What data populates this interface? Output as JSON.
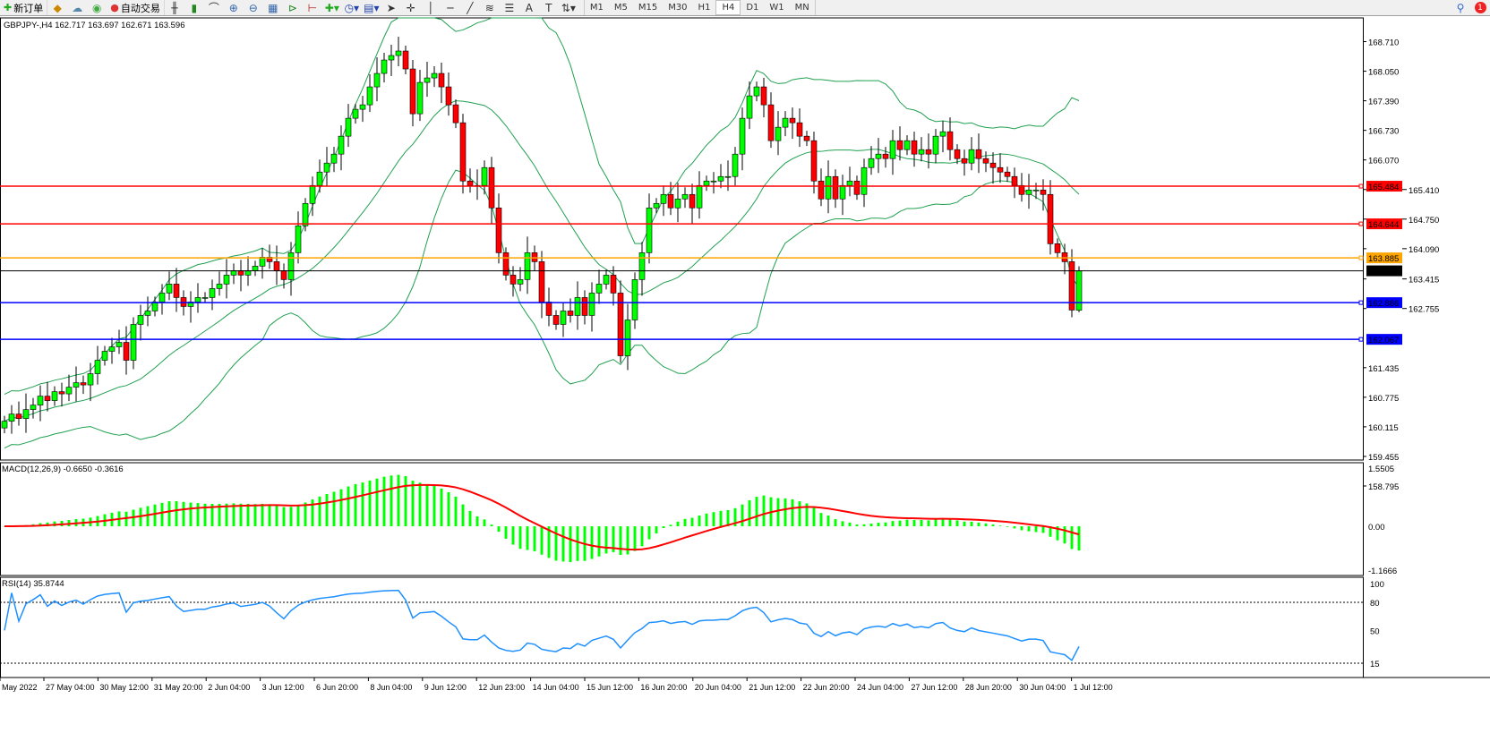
{
  "toolbar": {
    "new_order": "新订单",
    "auto_trading": "自动交易",
    "icons": [
      "new-order-icon",
      "market-watch-icon",
      "navigator-icon",
      "signal-icon",
      "auto-trading-icon",
      "bar-chart-icon",
      "candlestick-icon",
      "line-chart-icon",
      "zoom-in-icon",
      "zoom-out-icon",
      "tile-windows-icon",
      "chart-shift-icon",
      "autoscroll-icon",
      "indicators-icon",
      "periods-icon",
      "templates-icon",
      "cursor-icon",
      "crosshair-icon",
      "vertical-line-icon",
      "horizontal-line-icon",
      "trendline-icon",
      "fibonacci-icon",
      "channel-icon",
      "text-icon",
      "label-icon",
      "arrows-icon"
    ],
    "timeframes": [
      "M1",
      "M5",
      "M15",
      "M30",
      "H1",
      "H4",
      "D1",
      "W1",
      "MN"
    ],
    "active_timeframe": "H4",
    "notification_count": "1"
  },
  "chart": {
    "header": "GBPJPY-,H4  162.717 163.697 162.671 163.596",
    "symbol": "GBPJPY-",
    "period": "H4",
    "ohlc": {
      "open": 162.717,
      "high": 163.697,
      "low": 162.671,
      "close": 163.596
    },
    "price_axis": [
      "168.710",
      "168.050",
      "167.390",
      "166.730",
      "166.070",
      "165.410",
      "164.750",
      "164.090",
      "163.415",
      "162.755",
      "161.435",
      "160.775",
      "160.115",
      "159.455",
      "158.795"
    ],
    "price_range": [
      158.795,
      169.1
    ],
    "levels": [
      {
        "price": "165.484",
        "color": "#ff0000"
      },
      {
        "price": "164.644",
        "color": "#ff0000"
      },
      {
        "price": "163.885",
        "color": "#ffa500"
      },
      {
        "price": "162.886",
        "color": "#0000ff"
      },
      {
        "price": "162.067",
        "color": "#0000ff"
      }
    ],
    "bid": {
      "price": "163.596",
      "color": "#000000"
    },
    "bull_color": "#00ff00",
    "bear_color": "#ff0000",
    "band_color": "#20a050",
    "indicator": "Bollinger Bands",
    "closes": [
      160.24,
      160.4,
      160.3,
      160.5,
      160.6,
      160.8,
      160.7,
      160.9,
      160.85,
      161.0,
      161.1,
      161.05,
      161.3,
      161.6,
      161.8,
      161.9,
      162.0,
      161.6,
      162.4,
      162.6,
      162.7,
      162.9,
      163.1,
      163.3,
      163.0,
      162.8,
      162.9,
      163.0,
      163.0,
      163.2,
      163.3,
      163.5,
      163.6,
      163.5,
      163.6,
      163.7,
      163.9,
      163.8,
      163.6,
      163.4,
      164.0,
      164.6,
      165.1,
      165.5,
      165.8,
      166.0,
      166.2,
      166.6,
      167.0,
      167.2,
      167.3,
      167.7,
      168.0,
      168.3,
      168.4,
      168.5,
      168.1,
      167.1,
      167.8,
      167.9,
      168.0,
      167.7,
      167.3,
      166.9,
      165.6,
      165.5,
      165.5,
      165.9,
      165.0,
      164.0,
      163.5,
      163.3,
      163.4,
      164.0,
      163.8,
      162.9,
      162.6,
      162.4,
      162.7,
      162.6,
      163.0,
      162.6,
      163.1,
      163.3,
      163.5,
      163.1,
      161.7,
      162.5,
      163.4,
      164.0,
      165.0,
      165.1,
      165.3,
      165.0,
      165.2,
      165.3,
      165.0,
      165.5,
      165.6,
      165.6,
      165.7,
      165.7,
      166.2,
      167.0,
      167.5,
      167.7,
      167.3,
      166.5,
      166.8,
      167.0,
      166.9,
      166.6,
      166.5,
      165.6,
      165.2,
      165.7,
      165.2,
      165.5,
      165.6,
      165.3,
      165.9,
      166.1,
      166.2,
      166.1,
      166.5,
      166.3,
      166.5,
      166.2,
      166.3,
      166.2,
      166.6,
      166.7,
      166.3,
      166.1,
      166.0,
      166.3,
      166.1,
      166.0,
      165.9,
      165.8,
      165.7,
      165.5,
      165.3,
      165.4,
      165.4,
      165.3,
      164.2,
      164.0,
      163.8,
      162.72,
      163.596
    ]
  },
  "macd": {
    "label": "MACD(12,26,9) -0.6650 -0.3616",
    "axis": [
      "1.5505",
      "0.00",
      "-1.1666"
    ],
    "range": [
      -1.1666,
      1.5505
    ],
    "hist_color": "#00ff00",
    "signal_color": "#ff0000"
  },
  "rsi": {
    "label": "RSI(14) 35.8744",
    "axis": [
      "100",
      "80",
      "50",
      "15"
    ],
    "levels": [
      80,
      15
    ],
    "color": "#1e90ff"
  },
  "time_axis": [
    "May 2022",
    "27 May 04:00",
    "30 May 12:00",
    "31 May 20:00",
    "2 Jun 04:00",
    "3 Jun 12:00",
    "6 Jun 20:00",
    "8 Jun 04:00",
    "9 Jun 12:00",
    "12 Jun 23:00",
    "14 Jun 04:00",
    "15 Jun 12:00",
    "16 Jun 20:00",
    "20 Jun 04:00",
    "21 Jun 12:00",
    "22 Jun 20:00",
    "24 Jun 04:00",
    "27 Jun 12:00",
    "28 Jun 20:00",
    "30 Jun 04:00",
    "1 Jul 12:00"
  ]
}
